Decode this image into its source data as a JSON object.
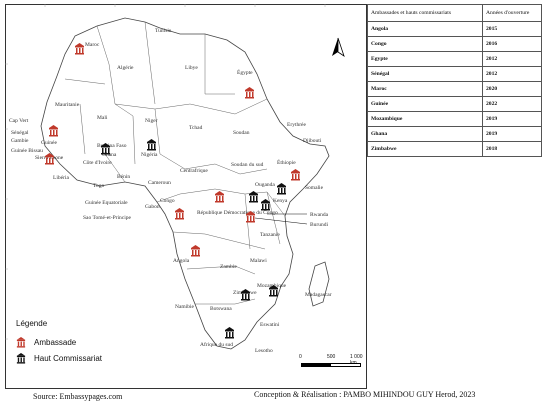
{
  "countries": [
    {
      "name": "Maroc"
    },
    {
      "name": "Tunisie"
    },
    {
      "name": "Algérie"
    },
    {
      "name": "Libye"
    },
    {
      "name": "Égypte"
    },
    {
      "name": "Mauritanie"
    },
    {
      "name": "Mali"
    },
    {
      "name": "Niger"
    },
    {
      "name": "Tchad"
    },
    {
      "name": "Soudan"
    },
    {
      "name": "Erythrée"
    },
    {
      "name": "Djibouti"
    },
    {
      "name": "Cap Vert"
    },
    {
      "name": "Sénégal"
    },
    {
      "name": "Gambie"
    },
    {
      "name": "Guinée"
    },
    {
      "name": "Guinée Bissau"
    },
    {
      "name": "Sierra Leone"
    },
    {
      "name": "Libéria"
    },
    {
      "name": "Côte d'Ivoire"
    },
    {
      "name": "Burkina Faso"
    },
    {
      "name": "Ghana"
    },
    {
      "name": "Togo"
    },
    {
      "name": "Bénin"
    },
    {
      "name": "Nigéria"
    },
    {
      "name": "Cameroun"
    },
    {
      "name": "Centrafrique"
    },
    {
      "name": "Soudan du sud"
    },
    {
      "name": "Éthiopie"
    },
    {
      "name": "Somalie"
    },
    {
      "name": "Guinée Equatoriale"
    },
    {
      "name": "Sao Tomé-et-Principe"
    },
    {
      "name": "Gabon"
    },
    {
      "name": "Congo"
    },
    {
      "name": "République Démocratique du Congo"
    },
    {
      "name": "Ouganda"
    },
    {
      "name": "Kenya"
    },
    {
      "name": "Rwanda"
    },
    {
      "name": "Burundi"
    },
    {
      "name": "Tanzanie"
    },
    {
      "name": "Angola"
    },
    {
      "name": "Zambie"
    },
    {
      "name": "Malawi"
    },
    {
      "name": "Mozambique"
    },
    {
      "name": "Madagascar"
    },
    {
      "name": "Zimbabwe"
    },
    {
      "name": "Namibie"
    },
    {
      "name": "Botswana"
    },
    {
      "name": "Eswatini"
    },
    {
      "name": "Afrique du sud"
    },
    {
      "name": "Lesotho"
    }
  ],
  "legend": {
    "title": "Légende",
    "embassy": "Ambassade",
    "high_commission": "Haut Commissariat"
  },
  "colors": {
    "embassy": "#c0392b",
    "high_commission": "#111111",
    "map_fill": "#ffffff"
  },
  "scale": {
    "ticks": [
      "0",
      "500",
      "1 000 km"
    ]
  },
  "north_arrow": "north-arrow-icon",
  "table": {
    "headers": [
      "Ambassades et hauts commissariats",
      "Années d'ouverture"
    ],
    "rows": [
      {
        "country": "Angola",
        "year": "2015"
      },
      {
        "country": "Congo",
        "year": "2016"
      },
      {
        "country": "Egypte",
        "year": "2012"
      },
      {
        "country": "Sénégal",
        "year": "2012"
      },
      {
        "country": "Maroc",
        "year": "2020"
      },
      {
        "country": "Guinée",
        "year": "2022"
      },
      {
        "country": "Mozambique",
        "year": "2019"
      },
      {
        "country": "Ghana",
        "year": "2019"
      },
      {
        "country": "Zimbabwe",
        "year": "2018"
      }
    ]
  },
  "footer": {
    "source": "Source: Embassypages.com",
    "credit": "Conception & Réalisation : PAMBO MIHINDOU GUY Herod, 2023"
  }
}
